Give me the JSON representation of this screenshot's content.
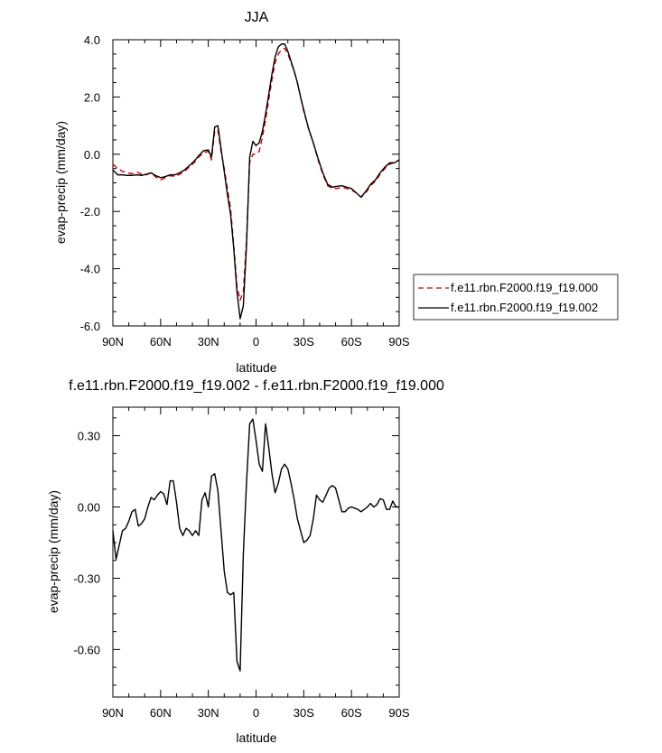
{
  "chart_data": [
    {
      "type": "line",
      "title": "JJA",
      "xlabel": "latitude",
      "ylabel": "evap-precip (mm/day)",
      "xlim": [
        -90,
        90
      ],
      "ylim": [
        -6.0,
        4.0
      ],
      "xticks": [
        -90,
        -60,
        -30,
        0,
        30,
        60,
        90
      ],
      "xtick_labels": [
        "90N",
        "60N",
        "30N",
        "0",
        "30S",
        "60S",
        "90S"
      ],
      "yticks": [
        -6,
        -4,
        -2,
        0,
        2,
        4
      ],
      "ytick_labels": [
        "-6.0",
        "-4.0",
        "-2.0",
        "0.0",
        "2.0",
        "4.0"
      ],
      "legend_position": "right",
      "series": [
        {
          "name": "f.e11.rbn.F2000.f19_f19.000",
          "color": "#cc0000",
          "dash": "dashed",
          "x": [
            -90,
            -87,
            -84,
            -81,
            -78,
            -75,
            -72,
            -69,
            -66,
            -63,
            -60,
            -57,
            -54,
            -51,
            -48,
            -45,
            -42,
            -39,
            -36,
            -33,
            -30,
            -28,
            -26,
            -24,
            -22,
            -20,
            -18,
            -16,
            -14,
            -12,
            -10,
            -8,
            -6,
            -4,
            -2,
            0,
            2,
            4,
            6,
            8,
            10,
            12,
            14,
            16,
            18,
            20,
            22,
            24,
            26,
            28,
            30,
            33,
            36,
            39,
            42,
            45,
            48,
            51,
            54,
            57,
            60,
            63,
            66,
            69,
            72,
            75,
            78,
            81,
            84,
            87,
            90
          ],
          "y": [
            -0.35,
            -0.5,
            -0.6,
            -0.65,
            -0.68,
            -0.62,
            -0.7,
            -0.72,
            -0.65,
            -0.8,
            -0.9,
            -0.82,
            -0.75,
            -0.78,
            -0.7,
            -0.6,
            -0.45,
            -0.3,
            -0.1,
            0.05,
            0.1,
            -0.2,
            0.8,
            0.85,
            0.1,
            -0.5,
            -1.2,
            -1.9,
            -3.2,
            -4.6,
            -5.1,
            -4.8,
            -3.0,
            -0.3,
            0.0,
            0.0,
            0.1,
            0.6,
            1.2,
            1.9,
            2.6,
            3.2,
            3.5,
            3.65,
            3.7,
            3.5,
            3.2,
            2.9,
            2.5,
            2.0,
            1.5,
            0.9,
            0.4,
            -0.2,
            -0.7,
            -1.1,
            -1.2,
            -1.2,
            -1.15,
            -1.2,
            -1.25,
            -1.35,
            -1.5,
            -1.35,
            -1.1,
            -0.95,
            -0.7,
            -0.5,
            -0.35,
            -0.3,
            -0.2
          ]
        },
        {
          "name": "f.e11.rbn.F2000.f19_f19.002",
          "color": "#000000",
          "dash": "solid",
          "x": [
            -90,
            -87,
            -84,
            -81,
            -78,
            -75,
            -72,
            -69,
            -66,
            -63,
            -60,
            -57,
            -54,
            -51,
            -48,
            -45,
            -42,
            -39,
            -36,
            -33,
            -30,
            -28,
            -26,
            -24,
            -22,
            -20,
            -18,
            -16,
            -14,
            -12,
            -10,
            -8,
            -6,
            -4,
            -2,
            0,
            2,
            4,
            6,
            8,
            10,
            12,
            14,
            16,
            18,
            20,
            22,
            24,
            26,
            28,
            30,
            33,
            36,
            39,
            42,
            45,
            48,
            51,
            54,
            57,
            60,
            63,
            66,
            69,
            72,
            75,
            78,
            81,
            84,
            87,
            90
          ],
          "y": [
            -0.55,
            -0.72,
            -0.72,
            -0.74,
            -0.74,
            -0.72,
            -0.74,
            -0.7,
            -0.65,
            -0.75,
            -0.82,
            -0.78,
            -0.72,
            -0.72,
            -0.65,
            -0.55,
            -0.4,
            -0.25,
            -0.05,
            0.12,
            0.15,
            -0.1,
            0.95,
            1.0,
            0.2,
            -0.6,
            -1.4,
            -2.1,
            -3.3,
            -4.8,
            -5.75,
            -5.3,
            -3.2,
            -0.1,
            0.45,
            0.3,
            0.4,
            0.8,
            1.4,
            2.1,
            2.8,
            3.4,
            3.75,
            3.85,
            3.85,
            3.6,
            3.25,
            2.9,
            2.5,
            2.0,
            1.55,
            0.9,
            0.4,
            -0.15,
            -0.65,
            -1.05,
            -1.15,
            -1.12,
            -1.1,
            -1.15,
            -1.2,
            -1.35,
            -1.5,
            -1.3,
            -1.05,
            -0.9,
            -0.65,
            -0.45,
            -0.3,
            -0.3,
            -0.2
          ]
        }
      ]
    },
    {
      "type": "line",
      "title": "f.e11.rbn.F2000.f19_f19.002 - f.e11.rbn.F2000.f19_f19.000",
      "xlabel": "latitude",
      "ylabel": "evap-precip (mm/day)",
      "xlim": [
        -90,
        90
      ],
      "ylim": [
        -0.8,
        0.42
      ],
      "xticks": [
        -90,
        -60,
        -30,
        0,
        30,
        60,
        90
      ],
      "xtick_labels": [
        "90N",
        "60N",
        "30N",
        "0",
        "30S",
        "60S",
        "90S"
      ],
      "yticks": [
        -0.6,
        -0.3,
        0.0,
        0.3
      ],
      "ytick_labels": [
        "-0.60",
        "-0.30",
        "0.00",
        "0.30"
      ],
      "series": [
        {
          "color": "#000000",
          "dash": "solid",
          "x": [
            -90,
            -88,
            -86,
            -84,
            -82,
            -80,
            -78,
            -76,
            -74,
            -72,
            -70,
            -68,
            -66,
            -64,
            -62,
            -60,
            -58,
            -56,
            -54,
            -52,
            -50,
            -48,
            -46,
            -44,
            -42,
            -40,
            -38,
            -36,
            -34,
            -32,
            -30,
            -28,
            -26,
            -24,
            -22,
            -20,
            -18,
            -16,
            -14,
            -12,
            -10,
            -8,
            -6,
            -4,
            -2,
            0,
            2,
            4,
            6,
            8,
            10,
            12,
            14,
            16,
            18,
            20,
            22,
            24,
            26,
            28,
            30,
            32,
            34,
            36,
            38,
            40,
            42,
            44,
            46,
            48,
            50,
            52,
            54,
            56,
            58,
            60,
            62,
            64,
            66,
            68,
            70,
            72,
            74,
            76,
            78,
            80,
            82,
            84,
            86,
            88,
            90
          ],
          "y": [
            -0.1,
            -0.22,
            -0.16,
            -0.1,
            -0.09,
            -0.06,
            -0.02,
            -0.01,
            -0.08,
            -0.07,
            -0.05,
            0.0,
            0.04,
            0.03,
            0.05,
            0.065,
            0.055,
            0.01,
            0.11,
            0.11,
            0.02,
            -0.09,
            -0.12,
            -0.09,
            -0.1,
            -0.12,
            -0.1,
            -0.12,
            0.03,
            0.06,
            0.0,
            0.13,
            0.14,
            0.07,
            -0.1,
            -0.27,
            -0.36,
            -0.37,
            -0.36,
            -0.65,
            -0.69,
            -0.2,
            0.1,
            0.35,
            0.37,
            0.28,
            0.18,
            0.15,
            0.35,
            0.25,
            0.14,
            0.06,
            0.1,
            0.16,
            0.18,
            0.16,
            0.1,
            0.03,
            -0.05,
            -0.1,
            -0.15,
            -0.14,
            -0.12,
            -0.05,
            0.05,
            0.03,
            0.02,
            0.05,
            0.08,
            0.09,
            0.08,
            0.03,
            -0.02,
            -0.02,
            -0.005,
            0.0,
            -0.005,
            -0.01,
            -0.02,
            -0.01,
            0.0,
            0.015,
            0.0,
            0.01,
            0.035,
            0.03,
            -0.01,
            -0.01,
            0.025,
            0.0,
            0.0
          ]
        }
      ]
    }
  ]
}
